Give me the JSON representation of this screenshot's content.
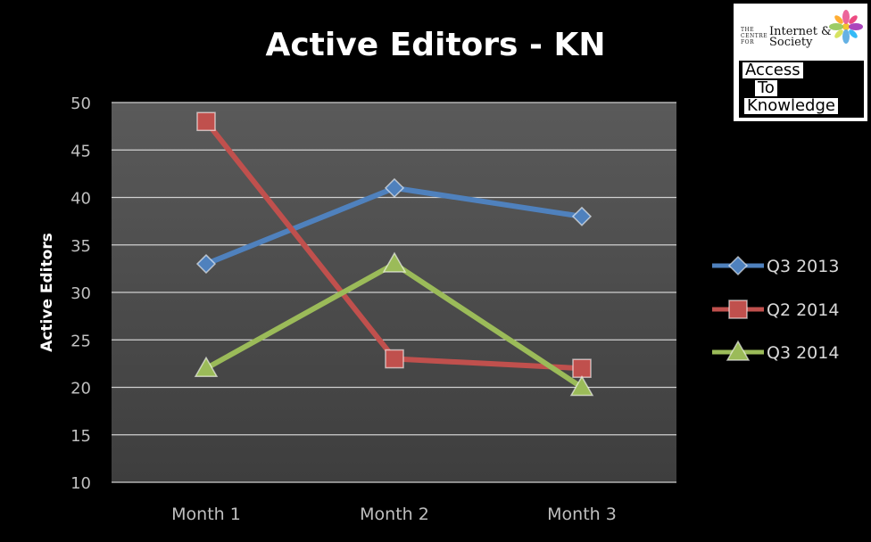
{
  "chart_data": {
    "type": "line",
    "title": "Active Editors - KN",
    "ylabel": "Active Editors",
    "xlabel": "",
    "categories": [
      "Month 1",
      "Month 2",
      "Month 3"
    ],
    "ylim": [
      10,
      50
    ],
    "yticks": [
      "10",
      "15",
      "20",
      "25",
      "30",
      "35",
      "40",
      "45",
      "50"
    ],
    "grid": true,
    "legend_position": "right",
    "series": [
      {
        "name": "Q3 2013",
        "values": [
          33,
          41,
          38
        ],
        "color": "#4f81bd",
        "marker": "diamond"
      },
      {
        "name": "Q2 2014",
        "values": [
          48,
          23,
          22
        ],
        "color": "#c0504d",
        "marker": "square"
      },
      {
        "name": "Q3 2014",
        "values": [
          22,
          33,
          20
        ],
        "color": "#9bbb59",
        "marker": "triangle"
      }
    ]
  },
  "logo": {
    "small_text": "THE CENTRE FOR",
    "org_text": "Internet & Society",
    "line1": "Access",
    "line2": "To",
    "line3": "Knowledge"
  }
}
